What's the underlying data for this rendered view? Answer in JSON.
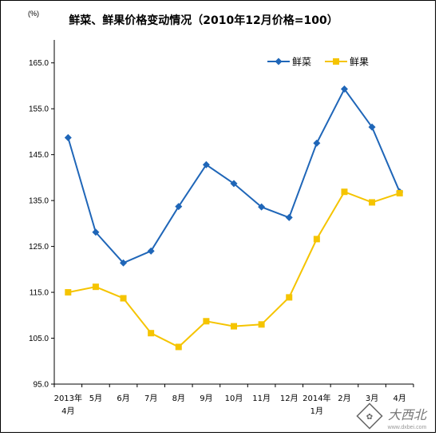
{
  "chart_data": {
    "type": "line",
    "title": "鲜菜、鲜果价格变动情况（2010年12月价格=100）",
    "unit_label": "(%)",
    "categories": [
      [
        "2013年",
        "4月"
      ],
      [
        "5月"
      ],
      [
        "6月"
      ],
      [
        "7月"
      ],
      [
        "8月"
      ],
      [
        "9月"
      ],
      [
        "10月"
      ],
      [
        "11月"
      ],
      [
        "12月"
      ],
      [
        "2014年",
        "1月"
      ],
      [
        "2月"
      ],
      [
        "3月"
      ],
      [
        "4月"
      ]
    ],
    "ylim": [
      95.0,
      170.0
    ],
    "yticks": [
      "95.0",
      "105.0",
      "115.0",
      "125.0",
      "135.0",
      "145.0",
      "155.0",
      "165.0"
    ],
    "ytick_values": [
      95,
      105,
      115,
      125,
      135,
      145,
      155,
      165
    ],
    "grid": false,
    "legend_position": "top-right",
    "series": [
      {
        "name": "鲜菜",
        "color": "#1f66b8",
        "marker": "diamond",
        "values": [
          148.7,
          128.1,
          121.4,
          124.0,
          133.7,
          142.8,
          138.7,
          133.6,
          131.3,
          147.5,
          159.3,
          151.0,
          136.9
        ]
      },
      {
        "name": "鲜果",
        "color": "#f5c400",
        "marker": "square",
        "values": [
          115.0,
          116.2,
          113.7,
          106.1,
          103.1,
          108.7,
          107.6,
          108.0,
          113.9,
          126.6,
          136.9,
          134.6,
          136.6
        ]
      }
    ]
  },
  "watermark": {
    "text": "大西北",
    "url": "www.dxbei.com"
  }
}
